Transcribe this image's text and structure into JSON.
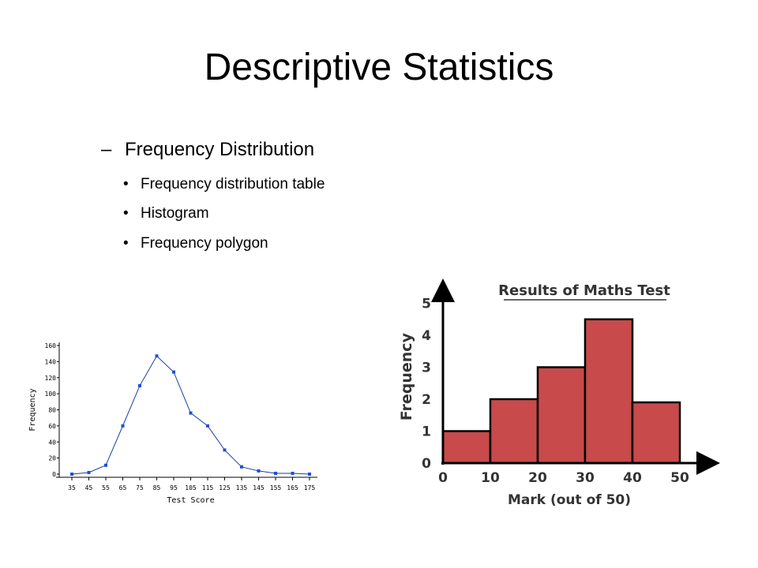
{
  "slide": {
    "title": "Descriptive Statistics",
    "heading": "Frequency Distribution",
    "bullets": [
      "Frequency distribution table",
      "Histogram",
      "Frequency polygon"
    ]
  },
  "chart_data": [
    {
      "type": "line",
      "xlabel": "Test Score",
      "ylabel": "Frequency",
      "x": [
        35,
        45,
        55,
        65,
        75,
        85,
        95,
        105,
        115,
        125,
        135,
        145,
        155,
        165,
        175
      ],
      "y": [
        0,
        2,
        11,
        60,
        110,
        147,
        127,
        76,
        60,
        30,
        9,
        4,
        1,
        1,
        0
      ],
      "ylim": [
        0,
        160
      ],
      "yticks": [
        0,
        20,
        40,
        60,
        80,
        100,
        120,
        140,
        160
      ],
      "grid": false,
      "line_color": "#1a3fa0",
      "marker_color": "#1f4fd1"
    },
    {
      "type": "bar",
      "title": "Results of Maths Test",
      "xlabel": "Mark (out of 50)",
      "ylabel": "Frequency",
      "bins": [
        [
          0,
          10
        ],
        [
          10,
          20
        ],
        [
          20,
          30
        ],
        [
          30,
          40
        ],
        [
          40,
          50
        ]
      ],
      "values": [
        1,
        2,
        3,
        4.5,
        1.9
      ],
      "xticks": [
        0,
        10,
        20,
        30,
        40,
        50
      ],
      "yticks": [
        0,
        1,
        2,
        3,
        4,
        5
      ],
      "ylim": [
        0,
        5.5
      ],
      "grid": false,
      "bar_color": "#c84a4a"
    }
  ]
}
